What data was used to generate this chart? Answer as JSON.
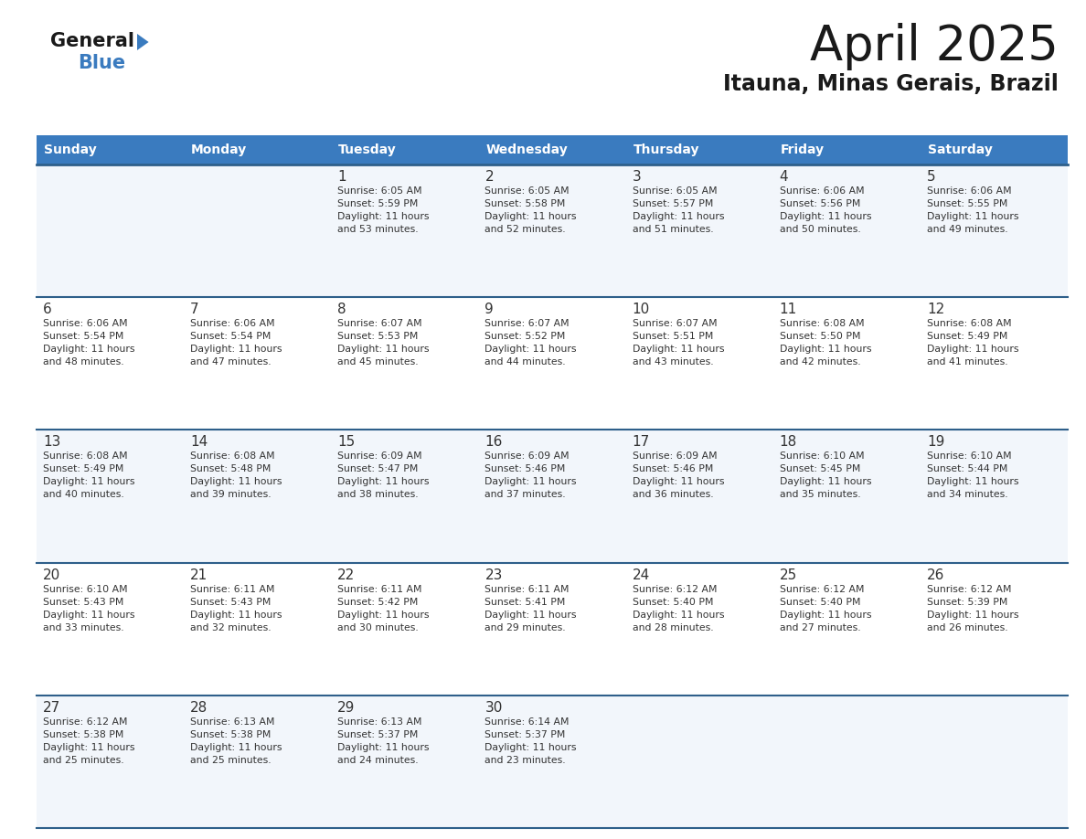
{
  "title": "April 2025",
  "subtitle": "Itauna, Minas Gerais, Brazil",
  "header_bg": "#3a7bbf",
  "header_text": "#ffffff",
  "row_bg": "#ffffff",
  "row_bg_alt": "#f2f6fb",
  "separator_color": "#2e5f8a",
  "cell_border_color": "#c8d8e8",
  "text_color": "#333333",
  "days_of_week": [
    "Sunday",
    "Monday",
    "Tuesday",
    "Wednesday",
    "Thursday",
    "Friday",
    "Saturday"
  ],
  "logo_general_color": "#1a1a1a",
  "logo_blue_color": "#3a7bbf",
  "logo_triangle_color": "#3a7bbf",
  "weeks": [
    {
      "days": [
        {
          "day": null,
          "info": null
        },
        {
          "day": null,
          "info": null
        },
        {
          "day": 1,
          "info": "Sunrise: 6:05 AM\nSunset: 5:59 PM\nDaylight: 11 hours\nand 53 minutes."
        },
        {
          "day": 2,
          "info": "Sunrise: 6:05 AM\nSunset: 5:58 PM\nDaylight: 11 hours\nand 52 minutes."
        },
        {
          "day": 3,
          "info": "Sunrise: 6:05 AM\nSunset: 5:57 PM\nDaylight: 11 hours\nand 51 minutes."
        },
        {
          "day": 4,
          "info": "Sunrise: 6:06 AM\nSunset: 5:56 PM\nDaylight: 11 hours\nand 50 minutes."
        },
        {
          "day": 5,
          "info": "Sunrise: 6:06 AM\nSunset: 5:55 PM\nDaylight: 11 hours\nand 49 minutes."
        }
      ]
    },
    {
      "days": [
        {
          "day": 6,
          "info": "Sunrise: 6:06 AM\nSunset: 5:54 PM\nDaylight: 11 hours\nand 48 minutes."
        },
        {
          "day": 7,
          "info": "Sunrise: 6:06 AM\nSunset: 5:54 PM\nDaylight: 11 hours\nand 47 minutes."
        },
        {
          "day": 8,
          "info": "Sunrise: 6:07 AM\nSunset: 5:53 PM\nDaylight: 11 hours\nand 45 minutes."
        },
        {
          "day": 9,
          "info": "Sunrise: 6:07 AM\nSunset: 5:52 PM\nDaylight: 11 hours\nand 44 minutes."
        },
        {
          "day": 10,
          "info": "Sunrise: 6:07 AM\nSunset: 5:51 PM\nDaylight: 11 hours\nand 43 minutes."
        },
        {
          "day": 11,
          "info": "Sunrise: 6:08 AM\nSunset: 5:50 PM\nDaylight: 11 hours\nand 42 minutes."
        },
        {
          "day": 12,
          "info": "Sunrise: 6:08 AM\nSunset: 5:49 PM\nDaylight: 11 hours\nand 41 minutes."
        }
      ]
    },
    {
      "days": [
        {
          "day": 13,
          "info": "Sunrise: 6:08 AM\nSunset: 5:49 PM\nDaylight: 11 hours\nand 40 minutes."
        },
        {
          "day": 14,
          "info": "Sunrise: 6:08 AM\nSunset: 5:48 PM\nDaylight: 11 hours\nand 39 minutes."
        },
        {
          "day": 15,
          "info": "Sunrise: 6:09 AM\nSunset: 5:47 PM\nDaylight: 11 hours\nand 38 minutes."
        },
        {
          "day": 16,
          "info": "Sunrise: 6:09 AM\nSunset: 5:46 PM\nDaylight: 11 hours\nand 37 minutes."
        },
        {
          "day": 17,
          "info": "Sunrise: 6:09 AM\nSunset: 5:46 PM\nDaylight: 11 hours\nand 36 minutes."
        },
        {
          "day": 18,
          "info": "Sunrise: 6:10 AM\nSunset: 5:45 PM\nDaylight: 11 hours\nand 35 minutes."
        },
        {
          "day": 19,
          "info": "Sunrise: 6:10 AM\nSunset: 5:44 PM\nDaylight: 11 hours\nand 34 minutes."
        }
      ]
    },
    {
      "days": [
        {
          "day": 20,
          "info": "Sunrise: 6:10 AM\nSunset: 5:43 PM\nDaylight: 11 hours\nand 33 minutes."
        },
        {
          "day": 21,
          "info": "Sunrise: 6:11 AM\nSunset: 5:43 PM\nDaylight: 11 hours\nand 32 minutes."
        },
        {
          "day": 22,
          "info": "Sunrise: 6:11 AM\nSunset: 5:42 PM\nDaylight: 11 hours\nand 30 minutes."
        },
        {
          "day": 23,
          "info": "Sunrise: 6:11 AM\nSunset: 5:41 PM\nDaylight: 11 hours\nand 29 minutes."
        },
        {
          "day": 24,
          "info": "Sunrise: 6:12 AM\nSunset: 5:40 PM\nDaylight: 11 hours\nand 28 minutes."
        },
        {
          "day": 25,
          "info": "Sunrise: 6:12 AM\nSunset: 5:40 PM\nDaylight: 11 hours\nand 27 minutes."
        },
        {
          "day": 26,
          "info": "Sunrise: 6:12 AM\nSunset: 5:39 PM\nDaylight: 11 hours\nand 26 minutes."
        }
      ]
    },
    {
      "days": [
        {
          "day": 27,
          "info": "Sunrise: 6:12 AM\nSunset: 5:38 PM\nDaylight: 11 hours\nand 25 minutes."
        },
        {
          "day": 28,
          "info": "Sunrise: 6:13 AM\nSunset: 5:38 PM\nDaylight: 11 hours\nand 25 minutes."
        },
        {
          "day": 29,
          "info": "Sunrise: 6:13 AM\nSunset: 5:37 PM\nDaylight: 11 hours\nand 24 minutes."
        },
        {
          "day": 30,
          "info": "Sunrise: 6:14 AM\nSunset: 5:37 PM\nDaylight: 11 hours\nand 23 minutes."
        },
        {
          "day": null,
          "info": null
        },
        {
          "day": null,
          "info": null
        },
        {
          "day": null,
          "info": null
        }
      ]
    }
  ]
}
